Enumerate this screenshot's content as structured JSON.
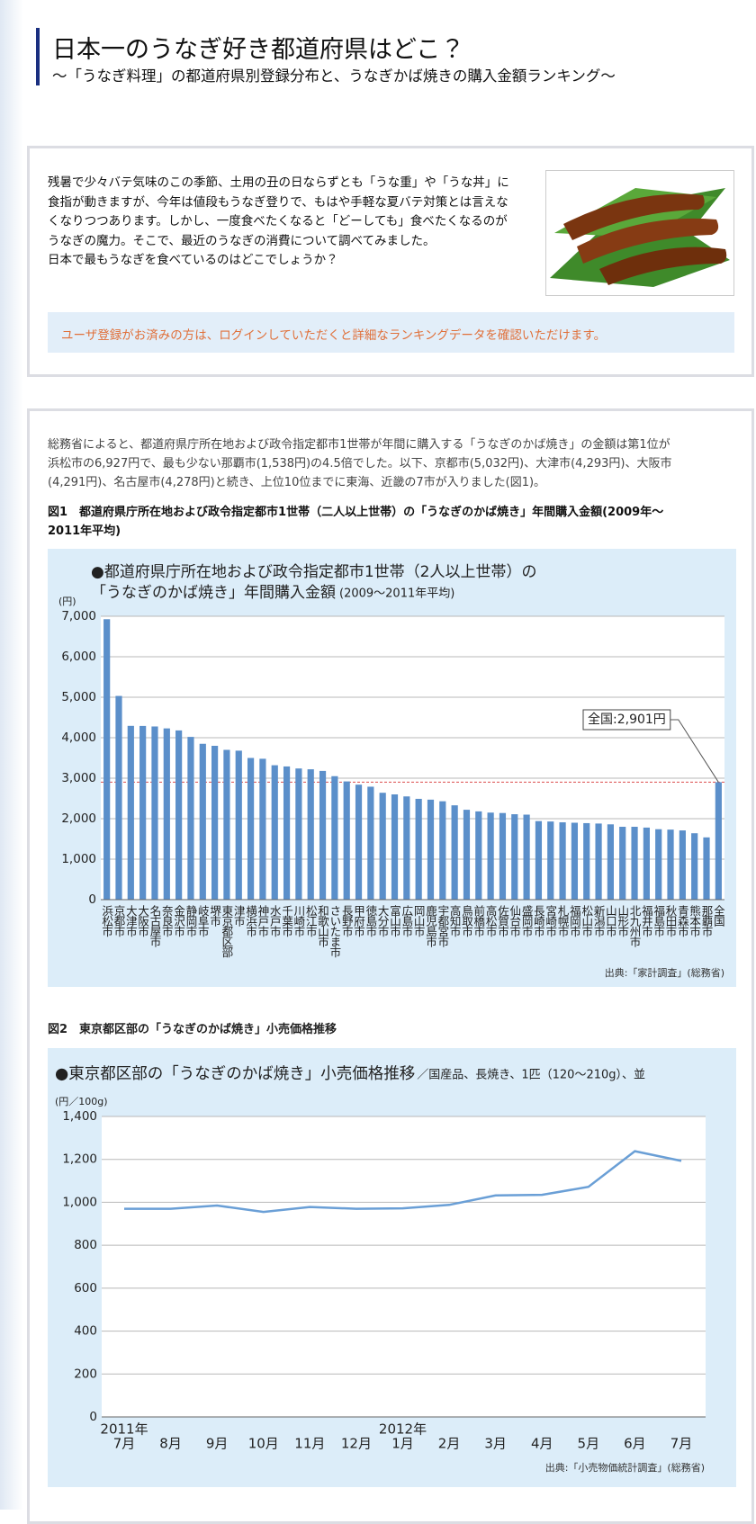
{
  "header": {
    "title": "日本一のうなぎ好き都道府県はどこ？",
    "subtitle": "～「うなぎ料理」の都道府県別登録分布と、うなぎかば焼きの購入金額ランキング～"
  },
  "intro": {
    "lines": [
      "残暑で少々バテ気味のこの季節、土用の丑の日ならずとも「うな重」や「うな丼」に",
      "食指が動きますが、今年は値段もうなぎ登りで、もはや手軽な夏バテ対策とは言えな",
      "くなりつつあります。しかし、一度食べたくなると「どーしても」食べたくなるのが",
      "うなぎの魔力。そこで、最近のうなぎの消費について調べてみました。",
      "日本で最もうなぎを食べているのはどこでしょうか？"
    ],
    "notice": "ユーザ登録がお済みの方は、ログインしていただくと詳細なランキングデータを確認いただけます。"
  },
  "article": {
    "lines": [
      "総務省によると、都道府県庁所在地および政令指定都市1世帯が年間に購入する「うなぎのかば焼き」の金額は第1位が",
      "浜松市の6,927円で、最も少ない那覇市(1,538円)の4.5倍でした。以下、京都市(5,032円)、大津市(4,293円)、大阪市",
      "(4,291円)、名古屋市(4,278円)と続き、上位10位までに東海、近畿の7市が入りました(図1)。"
    ],
    "figure1_caption": [
      "図1　都道府県庁所在地および政令指定都市1世帯（二人以上世帯）の「うなぎのかば焼き」年間購入金額(2009年～",
      "2011年平均)"
    ],
    "figure2_caption": "図2　東京都区部の「うなぎのかば焼き」小売価格推移"
  },
  "chart_data": [
    {
      "type": "bar",
      "title": [
        "●都道府県庁所在地および政令指定都市1世帯（2人以上世帯）の",
        "「うなぎのかば焼き」年間購入金額"
      ],
      "subtitle": "(2009～2011年平均)",
      "y_label": "(円)",
      "source": "出典:「家計調査」(総務省)",
      "categories": [
        "浜松市",
        "京都市",
        "大津市",
        "大阪市",
        "名古屋市",
        "奈良市",
        "金沢市",
        "静岡市",
        "岐阜市",
        "堺市",
        "東京都区部",
        "津市",
        "横浜市",
        "神戸市",
        "水戸市",
        "千葉市",
        "川崎市",
        "松江市",
        "和歌山市",
        "さいたま市",
        "長野市",
        "甲府市",
        "徳島市",
        "大分市",
        "富山市",
        "広島市",
        "岡山市",
        "鹿児島市",
        "宇都宮市",
        "高知市",
        "鳥取市",
        "前橋市",
        "高松市",
        "佐賀市",
        "仙台市",
        "盛岡市",
        "長崎市",
        "宮崎市",
        "札幌市",
        "福岡市",
        "松山市",
        "新潟市",
        "山口市",
        "山形市",
        "北九州市",
        "福井市",
        "福島市",
        "秋田市",
        "青森市",
        "熊本市",
        "那覇市",
        "全国"
      ],
      "values": [
        6927,
        5032,
        4293,
        4291,
        4278,
        4230,
        4180,
        4020,
        3850,
        3800,
        3700,
        3680,
        3500,
        3480,
        3320,
        3290,
        3240,
        3220,
        3180,
        3050,
        2920,
        2840,
        2790,
        2640,
        2600,
        2550,
        2490,
        2470,
        2430,
        2330,
        2220,
        2180,
        2150,
        2140,
        2110,
        2100,
        1940,
        1930,
        1910,
        1900,
        1890,
        1880,
        1860,
        1800,
        1800,
        1780,
        1740,
        1730,
        1710,
        1640,
        1538,
        2901
      ],
      "color": "#5b8fca",
      "ylim": [
        0,
        7000
      ],
      "yticks": [
        0,
        {
          "value": 1000,
          "label": "1,000"
        },
        {
          "value": 2000,
          "label": "2,000"
        },
        {
          "value": 3000,
          "label": "3,000"
        },
        {
          "value": 4000,
          "label": "4,000"
        },
        {
          "value": 5000,
          "label": "5,000"
        },
        {
          "value": 6000,
          "label": "6,000"
        },
        {
          "value": 7000,
          "label": "7,000"
        }
      ],
      "grid": true,
      "reference_line": {
        "value": 2901,
        "label": "全国:2,901円",
        "color": "#e06060"
      }
    },
    {
      "type": "line",
      "title": "●東京都区部の「うなぎのかば焼き」小売価格推移",
      "subtitle": "／国産品、長焼き、1匹（120～210g）、並",
      "y_label": "(円／100g)",
      "source": "出典:「小売物価統計調査」(総務省)",
      "categories": [
        "7月",
        "8月",
        "9月",
        "10月",
        "11月",
        "12月",
        "1月",
        "2月",
        "3月",
        "4月",
        "5月",
        "6月",
        "7月"
      ],
      "category_groups": [
        "2011年",
        null,
        null,
        null,
        null,
        null,
        "2012年",
        null,
        null,
        null,
        null,
        null,
        null
      ],
      "values": [
        970,
        970,
        985,
        955,
        978,
        970,
        972,
        988,
        1032,
        1035,
        1072,
        1238,
        1193
      ],
      "color": "#6a9fd6",
      "ylim": [
        0,
        1400
      ],
      "yticks": [
        0,
        200,
        400,
        600,
        800,
        {
          "value": 1000,
          "label": "1,000"
        },
        {
          "value": 1200,
          "label": "1,200"
        },
        {
          "value": 1400,
          "label": "1,400"
        }
      ],
      "grid": true
    }
  ]
}
